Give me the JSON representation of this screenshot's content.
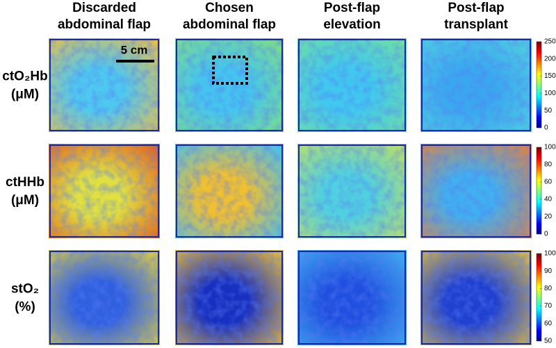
{
  "columns": [
    "Discarded",
    "abdominal flap",
    "Chosen",
    "abdominal flap",
    "Post-flap",
    "elevation",
    "Post-flap",
    "transplant"
  ],
  "scale_bar": "5 cm",
  "rows": [
    {
      "label": "ctO₂Hb",
      "unit": "(μM)",
      "colorbar": {
        "lim": [
          0,
          250
        ],
        "ticks": [
          0,
          50,
          100,
          150,
          200,
          250
        ]
      }
    },
    {
      "label": "ctHHb",
      "unit": "(μM)",
      "colorbar": {
        "lim": [
          0,
          100
        ],
        "ticks": [
          0,
          20,
          40,
          60,
          80,
          100
        ]
      }
    },
    {
      "label": "stO₂",
      "unit": "(%)",
      "colorbar": {
        "lim": [
          50,
          100
        ],
        "ticks": [
          50,
          60,
          70,
          80,
          90,
          100
        ]
      }
    }
  ]
}
